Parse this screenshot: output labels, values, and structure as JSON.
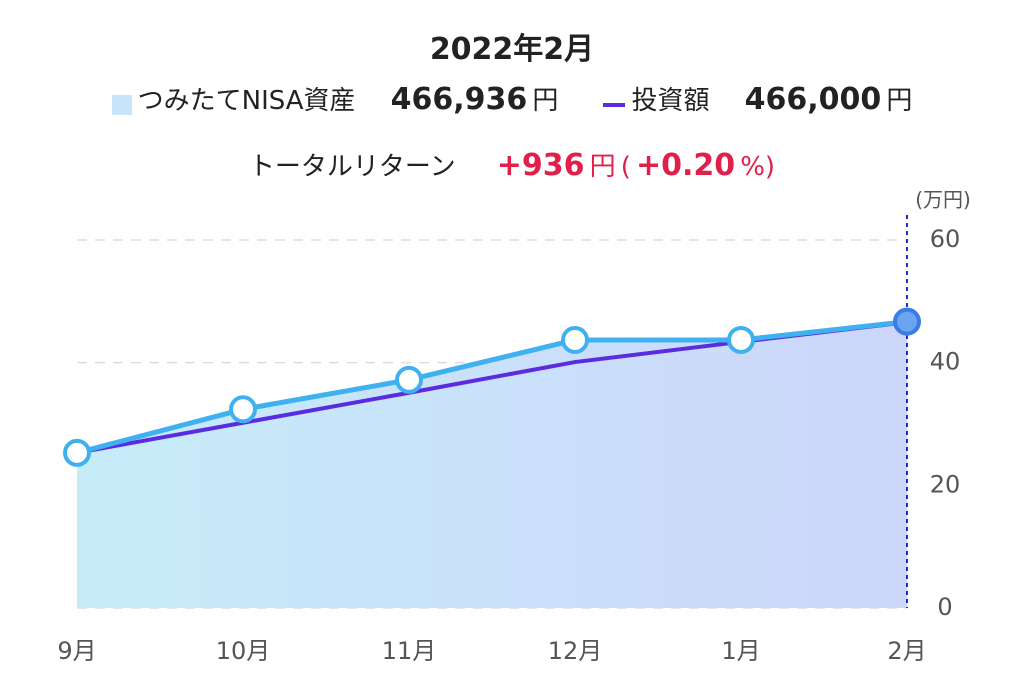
{
  "chart_data": {
    "type": "area-line",
    "title": "2022年2月",
    "y_unit_label": "(万円)",
    "categories": [
      "9月",
      "10月",
      "11月",
      "12月",
      "1月",
      "2月"
    ],
    "series": [
      {
        "name": "つみたてNISA資産",
        "color": "#3fb0f0",
        "values": [
          25.3,
          32.4,
          37.2,
          43.7,
          43.7,
          46.69
        ]
      },
      {
        "name": "投資額",
        "color": "#5b2be0",
        "values": [
          25.3,
          30.2,
          35.1,
          40.1,
          43.4,
          46.6
        ]
      }
    ],
    "ylim": [
      0,
      60
    ],
    "yticks": [
      0,
      20,
      40,
      60
    ],
    "grid": true
  },
  "summary": {
    "asset_value": "466,936",
    "asset_unit": "円",
    "invest_value": "466,000",
    "invest_unit": "円",
    "return_label": "トータルリターン",
    "return_value": "+936",
    "return_unit": "円",
    "paren_open": "(",
    "return_pct": "+0.20",
    "pct_unit": "%",
    "paren_close": ")"
  }
}
